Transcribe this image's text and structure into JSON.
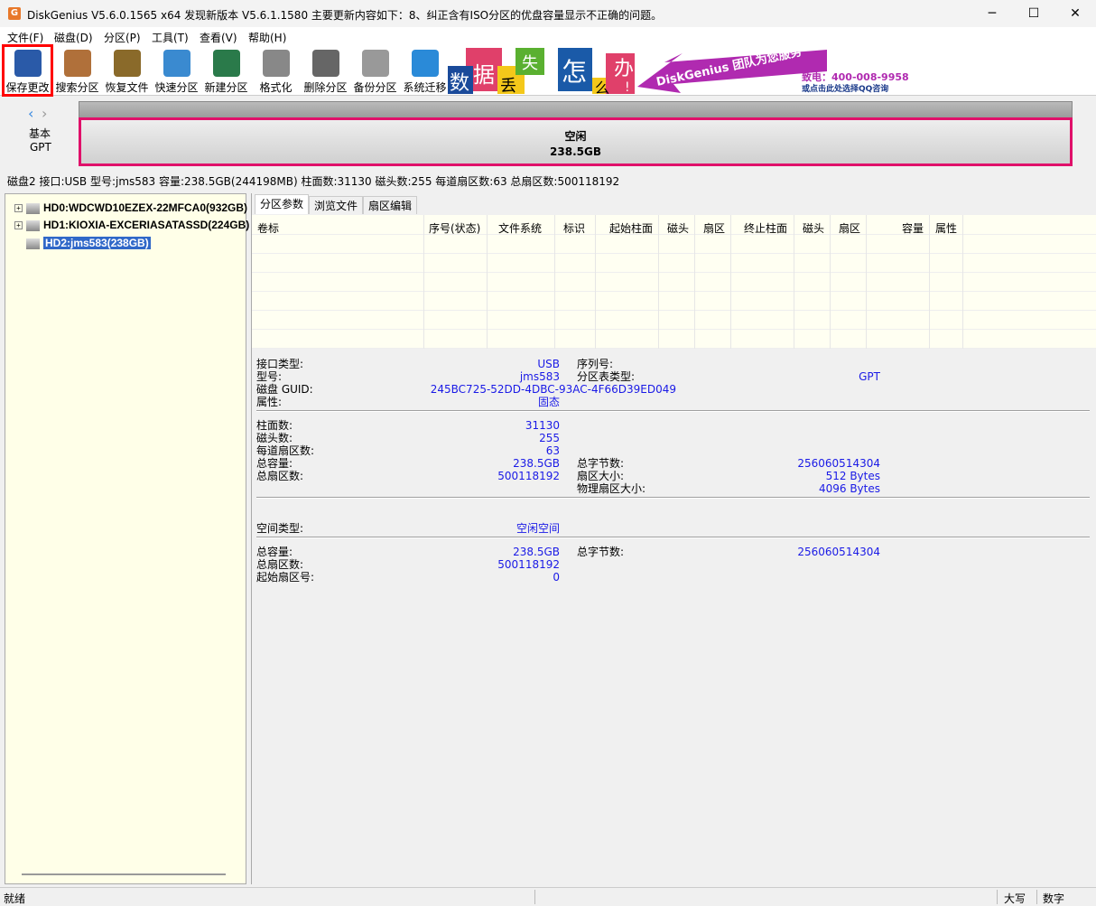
{
  "window": {
    "title": "DiskGenius V5.6.0.1565 x64    发现新版本 V5.6.1.1580   主要更新内容如下：8、纠正含有ISO分区的优盘容量显示不正确的问题。",
    "minimize": "─",
    "maximize": "☐",
    "close": "✕"
  },
  "menu": [
    "文件(F)",
    "磁盘(D)",
    "分区(P)",
    "工具(T)",
    "查看(V)",
    "帮助(H)"
  ],
  "toolbar": [
    {
      "label": "保存更改",
      "icon": "save-icon",
      "color": "#2a5aa8"
    },
    {
      "label": "搜索分区",
      "icon": "search-icon",
      "color": "#b0703a"
    },
    {
      "label": "恢复文件",
      "icon": "recover-icon",
      "color": "#8a6a2a"
    },
    {
      "label": "快速分区",
      "icon": "quick-partition-icon",
      "color": "#3a8ad0"
    },
    {
      "label": "新建分区",
      "icon": "new-partition-icon",
      "color": "#2a7a4a"
    },
    {
      "label": "格式化",
      "icon": "format-icon",
      "color": "#888888"
    },
    {
      "label": "删除分区",
      "icon": "delete-icon",
      "color": "#666666"
    },
    {
      "label": "备份分区",
      "icon": "backup-icon",
      "color": "#999999"
    },
    {
      "label": "系统迁移",
      "icon": "migrate-icon",
      "color": "#2a8ad8"
    }
  ],
  "banner": {
    "chars": [
      "数",
      "据",
      "丢",
      "失",
      "怎",
      "么",
      "办",
      "!"
    ],
    "slogan": "DiskGenius 团队为您服务",
    "phone": "致电：400-008-9958",
    "qq": "或点击此处选择QQ咨询"
  },
  "diskmap": {
    "type1": "基本",
    "type2": "GPT",
    "part_label": "空闲",
    "part_size": "238.5GB",
    "accent": "#e0106a"
  },
  "disk_info": "磁盘2 接口:USB  型号:jms583  容量:238.5GB(244198MB)  柱面数:31130  磁头数:255  每道扇区数:63  总扇区数:500118192",
  "tree": [
    {
      "label": "HD0:WDCWD10EZEX-22MFCA0(932GB)",
      "expand": "+"
    },
    {
      "label": "HD1:KIOXIA-EXCERIASATASSD(224GB)",
      "expand": "+"
    },
    {
      "label": "HD2:jms583(238GB)",
      "selected": true
    }
  ],
  "tabs": [
    "分区参数",
    "浏览文件",
    "扇区编辑"
  ],
  "columns": [
    "卷标",
    "序号(状态)",
    "文件系统",
    "标识",
    "起始柱面",
    "磁头",
    "扇区",
    "终止柱面",
    "磁头",
    "扇区",
    "容量",
    "属性"
  ],
  "details": {
    "s1": [
      [
        "接口类型:",
        "USB",
        "序列号:",
        ""
      ],
      [
        "型号:",
        "jms583",
        "分区表类型:",
        "GPT"
      ],
      [
        "磁盘 GUID:",
        "245BC725-52DD-4DBC-93AC-4F66D39ED049",
        "",
        ""
      ],
      [
        "属性:",
        "固态",
        "",
        ""
      ]
    ],
    "s2": [
      [
        "柱面数:",
        "31130",
        "",
        ""
      ],
      [
        "磁头数:",
        "255",
        "",
        ""
      ],
      [
        "每道扇区数:",
        "63",
        "",
        ""
      ],
      [
        "总容量:",
        "238.5GB",
        "总字节数:",
        "256060514304"
      ],
      [
        "总扇区数:",
        "500118192",
        "扇区大小:",
        "512 Bytes"
      ],
      [
        "",
        "",
        "物理扇区大小:",
        "4096 Bytes"
      ]
    ],
    "s3": [
      [
        "空间类型:",
        "空闲空间",
        "",
        ""
      ]
    ],
    "s4": [
      [
        "总容量:",
        "238.5GB",
        "总字节数:",
        "256060514304"
      ],
      [
        "总扇区数:",
        "500118192",
        "",
        ""
      ],
      [
        "起始扇区号:",
        "0",
        "",
        ""
      ]
    ]
  },
  "status": {
    "ready": "就绪",
    "caps": "大写",
    "num": "数字"
  }
}
